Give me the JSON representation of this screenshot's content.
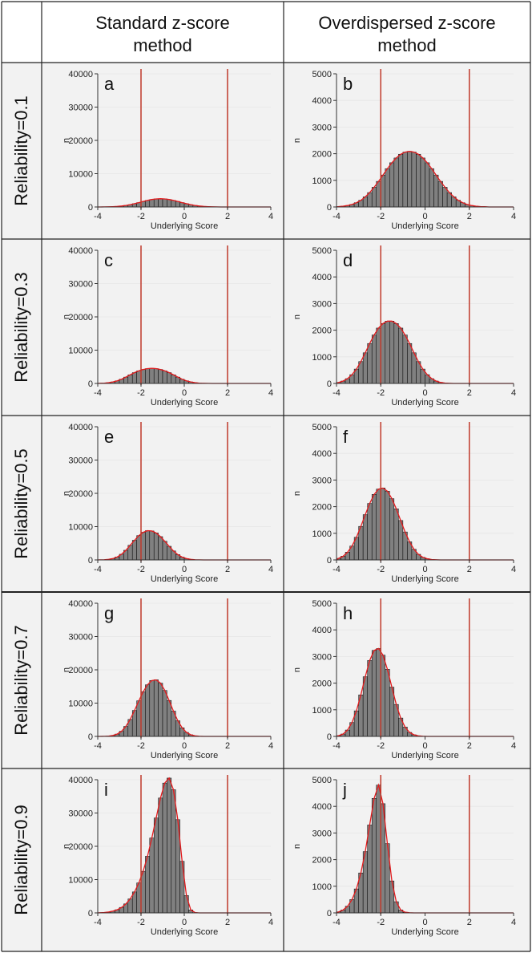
{
  "columns": [
    "Standard z-score\nmethod",
    "Overdispersed z-score\nmethod"
  ],
  "rows": [
    "Reliability=0.1",
    "Reliability=0.3",
    "Reliability=0.5",
    "Reliability=0.7",
    "Reliability=0.9"
  ],
  "colors": {
    "bar": "#808080",
    "bar_edge": "#000000",
    "curve": "#e41a1c",
    "vline": "#c0392b",
    "panel_bg": "#f2f2f2",
    "grid": "#e6e6e6"
  },
  "chart_data": [
    {
      "type": "bar",
      "panel": "a",
      "xlabel": "Underlying Score",
      "ylabel": "n",
      "xlim": [
        -4,
        4
      ],
      "ylim": [
        0,
        40000
      ],
      "yticks": [
        0,
        10000,
        20000,
        30000,
        40000
      ],
      "xticks": [
        -4,
        -2,
        0,
        2,
        4
      ],
      "vlines": [
        -2,
        2
      ],
      "bin_width": 0.2,
      "x": [
        -3.9,
        -3.7,
        -3.5,
        -3.3,
        -3.1,
        -2.9,
        -2.7,
        -2.5,
        -2.3,
        -2.1,
        -1.9,
        -1.7,
        -1.5,
        -1.3,
        -1.1,
        -0.9,
        -0.7,
        -0.5,
        -0.3,
        -0.1,
        0.1,
        0.3,
        0.5,
        0.7,
        0.9,
        1.1,
        1.3,
        1.5,
        1.7,
        1.9,
        2.1,
        2.3,
        2.5,
        2.7,
        2.9,
        3.1,
        3.3,
        3.5,
        3.7,
        3.9
      ],
      "values": [
        10,
        20,
        50,
        90,
        170,
        290,
        460,
        690,
        980,
        1310,
        1660,
        1980,
        2250,
        2420,
        2480,
        2420,
        2250,
        1980,
        1660,
        1310,
        980,
        690,
        460,
        290,
        170,
        90,
        50,
        20,
        10,
        5,
        0,
        0,
        0,
        0,
        0,
        0,
        0,
        0,
        0,
        0
      ]
    },
    {
      "type": "bar",
      "panel": "b",
      "xlabel": "Underlying Score",
      "ylabel": "n",
      "xlim": [
        -4,
        4
      ],
      "ylim": [
        0,
        5000
      ],
      "yticks": [
        0,
        1000,
        2000,
        3000,
        4000,
        5000
      ],
      "xticks": [
        -4,
        -2,
        0,
        2,
        4
      ],
      "vlines": [
        -2,
        2
      ],
      "bin_width": 0.2,
      "x": [
        -3.9,
        -3.7,
        -3.5,
        -3.3,
        -3.1,
        -2.9,
        -2.7,
        -2.5,
        -2.3,
        -2.1,
        -1.9,
        -1.7,
        -1.5,
        -1.3,
        -1.1,
        -0.9,
        -0.7,
        -0.5,
        -0.3,
        -0.1,
        0.1,
        0.3,
        0.5,
        0.7,
        0.9,
        1.1,
        1.3,
        1.5,
        1.7,
        1.9,
        2.1,
        2.3,
        2.5,
        2.7,
        2.9,
        3.1,
        3.3,
        3.5,
        3.7,
        3.9
      ],
      "values": [
        15,
        30,
        55,
        95,
        160,
        250,
        380,
        540,
        740,
        960,
        1200,
        1440,
        1660,
        1840,
        1980,
        2060,
        2090,
        2060,
        1980,
        1840,
        1660,
        1440,
        1200,
        960,
        740,
        540,
        380,
        250,
        160,
        95,
        55,
        30,
        15,
        8,
        0,
        0,
        0,
        0,
        0,
        0
      ]
    },
    {
      "type": "bar",
      "panel": "c",
      "xlabel": "Underlying Score",
      "ylabel": "n",
      "xlim": [
        -4,
        4
      ],
      "ylim": [
        0,
        40000
      ],
      "yticks": [
        0,
        10000,
        20000,
        30000,
        40000
      ],
      "xticks": [
        -4,
        -2,
        0,
        2,
        4
      ],
      "vlines": [
        -2,
        2
      ],
      "bin_width": 0.2,
      "x": [
        -3.9,
        -3.7,
        -3.5,
        -3.3,
        -3.1,
        -2.9,
        -2.7,
        -2.5,
        -2.3,
        -2.1,
        -1.9,
        -1.7,
        -1.5,
        -1.3,
        -1.1,
        -0.9,
        -0.7,
        -0.5,
        -0.3,
        -0.1,
        0.1,
        0.3,
        0.5,
        0.7,
        0.9,
        1.1,
        1.3,
        1.5,
        1.7,
        1.9,
        2.1,
        2.3,
        2.5,
        2.7,
        2.9,
        3.1,
        3.3,
        3.5,
        3.7,
        3.9
      ],
      "values": [
        40,
        100,
        230,
        450,
        800,
        1280,
        1900,
        2600,
        3250,
        3800,
        4200,
        4450,
        4550,
        4450,
        4200,
        3800,
        3250,
        2600,
        1900,
        1280,
        800,
        450,
        230,
        100,
        40,
        15,
        5,
        0,
        0,
        0,
        0,
        0,
        0,
        0,
        0,
        0,
        0,
        0,
        0,
        0
      ]
    },
    {
      "type": "bar",
      "panel": "d",
      "xlabel": "Underlying Score",
      "ylabel": "n",
      "xlim": [
        -4,
        4
      ],
      "ylim": [
        0,
        5000
      ],
      "yticks": [
        0,
        1000,
        2000,
        3000,
        4000,
        5000
      ],
      "xticks": [
        -4,
        -2,
        0,
        2,
        4
      ],
      "vlines": [
        -2,
        2
      ],
      "bin_width": 0.2,
      "x": [
        -3.9,
        -3.7,
        -3.5,
        -3.3,
        -3.1,
        -2.9,
        -2.7,
        -2.5,
        -2.3,
        -2.1,
        -1.9,
        -1.7,
        -1.5,
        -1.3,
        -1.1,
        -0.9,
        -0.7,
        -0.5,
        -0.3,
        -0.1,
        0.1,
        0.3,
        0.5,
        0.7,
        0.9,
        1.1,
        1.3,
        1.5,
        1.7,
        1.9,
        2.1,
        2.3,
        2.5,
        2.7,
        2.9,
        3.1,
        3.3,
        3.5,
        3.7,
        3.9
      ],
      "values": [
        40,
        90,
        180,
        330,
        540,
        820,
        1150,
        1500,
        1820,
        2080,
        2250,
        2340,
        2340,
        2250,
        2080,
        1820,
        1500,
        1150,
        820,
        540,
        330,
        180,
        90,
        40,
        15,
        5,
        0,
        0,
        0,
        0,
        0,
        0,
        0,
        0,
        0,
        0,
        0,
        0,
        0,
        0
      ]
    },
    {
      "type": "bar",
      "panel": "e",
      "xlabel": "Underlying Score",
      "ylabel": "n",
      "xlim": [
        -4,
        4
      ],
      "ylim": [
        0,
        40000
      ],
      "yticks": [
        0,
        10000,
        20000,
        30000,
        40000
      ],
      "xticks": [
        -4,
        -2,
        0,
        2,
        4
      ],
      "vlines": [
        -2,
        2
      ],
      "bin_width": 0.2,
      "x": [
        -3.9,
        -3.7,
        -3.5,
        -3.3,
        -3.1,
        -2.9,
        -2.7,
        -2.5,
        -2.3,
        -2.1,
        -1.9,
        -1.7,
        -1.5,
        -1.3,
        -1.1,
        -0.9,
        -0.7,
        -0.5,
        -0.3,
        -0.1,
        0.1,
        0.3,
        0.5,
        0.7,
        0.9,
        1.1,
        1.3,
        1.5,
        1.7,
        1.9,
        2.1,
        2.3,
        2.5,
        2.7,
        2.9,
        3.1,
        3.3,
        3.5,
        3.7,
        3.9
      ],
      "values": [
        20,
        60,
        170,
        420,
        900,
        1700,
        2900,
        4400,
        5900,
        7300,
        8300,
        8800,
        8700,
        8100,
        7000,
        5600,
        4100,
        2700,
        1600,
        850,
        400,
        170,
        60,
        20,
        5,
        0,
        0,
        0,
        0,
        0,
        0,
        0,
        0,
        0,
        0,
        0,
        0,
        0,
        0,
        0
      ]
    },
    {
      "type": "bar",
      "panel": "f",
      "xlabel": "Underlying Score",
      "ylabel": "n",
      "xlim": [
        -4,
        4
      ],
      "ylim": [
        0,
        5000
      ],
      "yticks": [
        0,
        1000,
        2000,
        3000,
        4000,
        5000
      ],
      "xticks": [
        -4,
        -2,
        0,
        2,
        4
      ],
      "vlines": [
        -2,
        2
      ],
      "bin_width": 0.2,
      "x": [
        -3.9,
        -3.7,
        -3.5,
        -3.3,
        -3.1,
        -2.9,
        -2.7,
        -2.5,
        -2.3,
        -2.1,
        -1.9,
        -1.7,
        -1.5,
        -1.3,
        -1.1,
        -0.9,
        -0.7,
        -0.5,
        -0.3,
        -0.1,
        0.1,
        0.3,
        0.5,
        0.7,
        0.9,
        1.1,
        1.3,
        1.5,
        1.7,
        1.9,
        2.1,
        2.3,
        2.5,
        2.7,
        2.9,
        3.1,
        3.3,
        3.5,
        3.7,
        3.9
      ],
      "values": [
        60,
        140,
        290,
        520,
        850,
        1260,
        1700,
        2120,
        2460,
        2660,
        2700,
        2580,
        2300,
        1920,
        1480,
        1050,
        680,
        400,
        210,
        100,
        45,
        15,
        5,
        0,
        0,
        0,
        0,
        0,
        0,
        0,
        0,
        0,
        0,
        0,
        0,
        0,
        0,
        0,
        0,
        0
      ]
    },
    {
      "type": "bar",
      "panel": "g",
      "xlabel": "Underlying Score",
      "ylabel": "n",
      "xlim": [
        -4,
        4
      ],
      "ylim": [
        0,
        40000
      ],
      "yticks": [
        0,
        10000,
        20000,
        30000,
        40000
      ],
      "xticks": [
        -4,
        -2,
        0,
        2,
        4
      ],
      "vlines": [
        -2,
        2
      ],
      "bin_width": 0.2,
      "x": [
        -3.9,
        -3.7,
        -3.5,
        -3.3,
        -3.1,
        -2.9,
        -2.7,
        -2.5,
        -2.3,
        -2.1,
        -1.9,
        -1.7,
        -1.5,
        -1.3,
        -1.1,
        -0.9,
        -0.7,
        -0.5,
        -0.3,
        -0.1,
        0.1,
        0.3,
        0.5,
        0.7,
        0.9,
        1.1,
        1.3,
        1.5,
        1.7,
        1.9,
        2.1,
        2.3,
        2.5,
        2.7,
        2.9,
        3.1,
        3.3,
        3.5,
        3.7,
        3.9
      ],
      "values": [
        10,
        30,
        100,
        280,
        700,
        1550,
        3000,
        5100,
        7800,
        10700,
        13400,
        15500,
        16800,
        17000,
        16000,
        13800,
        10800,
        7600,
        4700,
        2600,
        1200,
        480,
        160,
        50,
        10,
        0,
        0,
        0,
        0,
        0,
        0,
        0,
        0,
        0,
        0,
        0,
        0,
        0,
        0,
        0
      ]
    },
    {
      "type": "bar",
      "panel": "h",
      "xlabel": "Underlying Score",
      "ylabel": "n",
      "xlim": [
        -4,
        4
      ],
      "ylim": [
        0,
        5000
      ],
      "yticks": [
        0,
        1000,
        2000,
        3000,
        4000,
        5000
      ],
      "xticks": [
        -4,
        -2,
        0,
        2,
        4
      ],
      "vlines": [
        -2,
        2
      ],
      "bin_width": 0.2,
      "x": [
        -3.9,
        -3.7,
        -3.5,
        -3.3,
        -3.1,
        -2.9,
        -2.7,
        -2.5,
        -2.3,
        -2.1,
        -1.9,
        -1.7,
        -1.5,
        -1.3,
        -1.1,
        -0.9,
        -0.7,
        -0.5,
        -0.3,
        -0.1,
        0.1,
        0.3,
        0.5,
        0.7,
        0.9,
        1.1,
        1.3,
        1.5,
        1.7,
        1.9,
        2.1,
        2.3,
        2.5,
        2.7,
        2.9,
        3.1,
        3.3,
        3.5,
        3.7,
        3.9
      ],
      "values": [
        30,
        90,
        240,
        520,
        960,
        1560,
        2240,
        2850,
        3230,
        3300,
        3050,
        2520,
        1850,
        1200,
        690,
        350,
        150,
        60,
        20,
        5,
        0,
        0,
        0,
        0,
        0,
        0,
        0,
        0,
        0,
        0,
        0,
        0,
        0,
        0,
        0,
        0,
        0,
        0,
        0,
        0
      ]
    },
    {
      "type": "bar",
      "panel": "i",
      "xlabel": "Underlying Score",
      "ylabel": "n",
      "xlim": [
        -4,
        4
      ],
      "ylim": [
        0,
        40000
      ],
      "yticks": [
        0,
        10000,
        20000,
        30000,
        40000
      ],
      "xticks": [
        -4,
        -2,
        0,
        2,
        4
      ],
      "vlines": [
        -2,
        2
      ],
      "bin_width": 0.2,
      "x": [
        -3.9,
        -3.7,
        -3.5,
        -3.3,
        -3.1,
        -2.9,
        -2.7,
        -2.5,
        -2.3,
        -2.1,
        -1.9,
        -1.7,
        -1.5,
        -1.3,
        -1.1,
        -0.9,
        -0.7,
        -0.5,
        -0.3,
        -0.1,
        0.1,
        0.3,
        0.5,
        0.7,
        0.9,
        1.1,
        1.3,
        1.5,
        1.7,
        1.9,
        2.1,
        2.3,
        2.5,
        2.7,
        2.9,
        3.1,
        3.3,
        3.5,
        3.7,
        3.9
      ],
      "values": [
        50,
        120,
        260,
        520,
        950,
        1650,
        2700,
        4200,
        6300,
        9000,
        12500,
        17000,
        22500,
        28500,
        34500,
        39000,
        40500,
        37000,
        28000,
        15500,
        5200,
        900,
        100,
        10,
        0,
        0,
        0,
        0,
        0,
        0,
        0,
        0,
        0,
        0,
        0,
        0,
        0,
        0,
        0,
        0
      ]
    },
    {
      "type": "bar",
      "panel": "j",
      "xlabel": "Underlying Score",
      "ylabel": "n",
      "xlim": [
        -4,
        4
      ],
      "ylim": [
        0,
        5000
      ],
      "yticks": [
        0,
        1000,
        2000,
        3000,
        4000,
        5000
      ],
      "xticks": [
        -4,
        -2,
        0,
        2,
        4
      ],
      "vlines": [
        -2,
        2
      ],
      "bin_width": 0.2,
      "x": [
        -3.9,
        -3.7,
        -3.5,
        -3.3,
        -3.1,
        -2.9,
        -2.7,
        -2.5,
        -2.3,
        -2.1,
        -1.9,
        -1.7,
        -1.5,
        -1.3,
        -1.1,
        -0.9,
        -0.7,
        -0.5,
        -0.3,
        -0.1,
        0.1,
        0.3,
        0.5,
        0.7,
        0.9,
        1.1,
        1.3,
        1.5,
        1.7,
        1.9,
        2.1,
        2.3,
        2.5,
        2.7,
        2.9,
        3.1,
        3.3,
        3.5,
        3.7,
        3.9
      ],
      "values": [
        40,
        110,
        250,
        500,
        900,
        1500,
        2300,
        3300,
        4300,
        4800,
        4100,
        2600,
        1200,
        420,
        110,
        25,
        5,
        0,
        0,
        0,
        0,
        0,
        0,
        0,
        0,
        0,
        0,
        0,
        0,
        0,
        0,
        0,
        0,
        0,
        0,
        0,
        0,
        0,
        0,
        0
      ]
    }
  ]
}
